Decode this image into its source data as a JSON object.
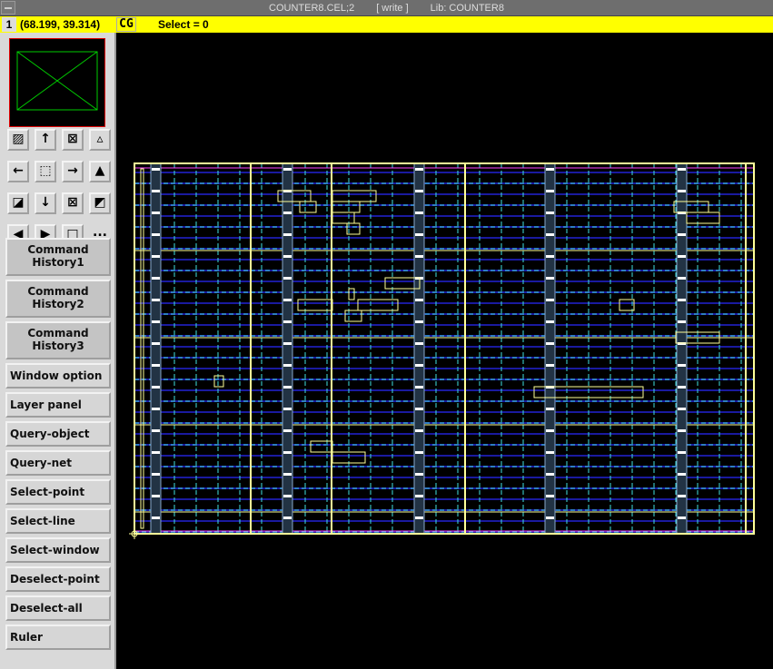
{
  "window": {
    "title_cell": "COUNTER8.CEL;2",
    "title_mode": "[ write ]",
    "title_lib": "Lib: COUNTER8"
  },
  "status": {
    "window_number": "1",
    "coordinates": "(68.199, 39.314)",
    "cg_label": "CG",
    "selection": "Select = 0"
  },
  "toolbar": {
    "icons": [
      "edit-cell-icon",
      "arrow-up-icon",
      "zoom-fit-icon",
      "small-mountain-icon",
      "arrow-left-icon",
      "zoom-in-box-icon",
      "arrow-right-icon",
      "mountain-icon",
      "zoom-out-icon",
      "arrow-down-icon",
      "zoom-all-icon",
      "fill-icon",
      "first-icon",
      "last-icon",
      "redraw-icon"
    ],
    "more_label": "..."
  },
  "commands": {
    "history": [
      "Command\nHistory1",
      "Command\nHistory2",
      "Command\nHistory3"
    ],
    "items": [
      "Window option",
      "Layer panel",
      "Query-object",
      "Query-net",
      "Select-point",
      "Select-line",
      "Select-window",
      "Deselect-point",
      "Deselect-all",
      "Ruler"
    ]
  },
  "colors": {
    "background": "#000000",
    "status_bar": "#ffff00",
    "layout_outline": "#ffff99",
    "metal_track": "#1a1aa0",
    "grid": "#40e0e0",
    "pin": "#ff44ff"
  }
}
